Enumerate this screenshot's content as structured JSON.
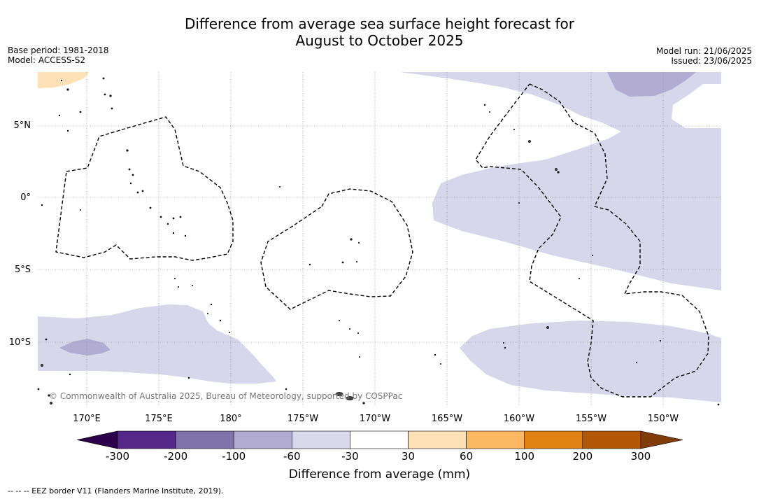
{
  "header": {
    "title_line1": "Difference from average sea surface height forecast for",
    "title_line2": "August to October 2025"
  },
  "meta": {
    "base_period": "Base period: 1981-2018",
    "model": "Model: ACCESS-S2",
    "model_run": "Model run: 21/06/2025",
    "issued": "Issued: 23/06/2025"
  },
  "map": {
    "lat_labels": [
      "5°N",
      "0°",
      "5°S",
      "10°S"
    ],
    "lat_values": [
      5,
      0,
      -5,
      -10
    ],
    "lon_labels": [
      "170°E",
      "175°E",
      "180°",
      "175°W",
      "170°W",
      "165°W",
      "160°W",
      "155°W",
      "150°W"
    ],
    "lon_values": [
      170,
      175,
      180,
      -175,
      -170,
      -165,
      -160,
      -155,
      -150
    ],
    "credit": "© Commonwealth of Australia 2025, Bureau of Meteorology, supported by COSPPac",
    "colors": {
      "light_purple": "#d6d7ea",
      "mid_purple": "#b2abd2",
      "light_orange": "#fde0b6",
      "land": "#555555"
    }
  },
  "colorbar": {
    "ticks": [
      "-300",
      "-200",
      "-100",
      "-60",
      "-30",
      "30",
      "60",
      "100",
      "200",
      "300"
    ],
    "colors": [
      "#542788",
      "#8073ac",
      "#b2abd2",
      "#d8daeb",
      "#ffffff",
      "#fee0b6",
      "#fdb863",
      "#e08214",
      "#b35806"
    ],
    "under_color": "#2d004b",
    "over_color": "#7f3b08",
    "label": "Difference from average (mm)"
  },
  "footnote": "--  --  -- EEZ border V11 (Flanders Marine Institute, 2019)."
}
